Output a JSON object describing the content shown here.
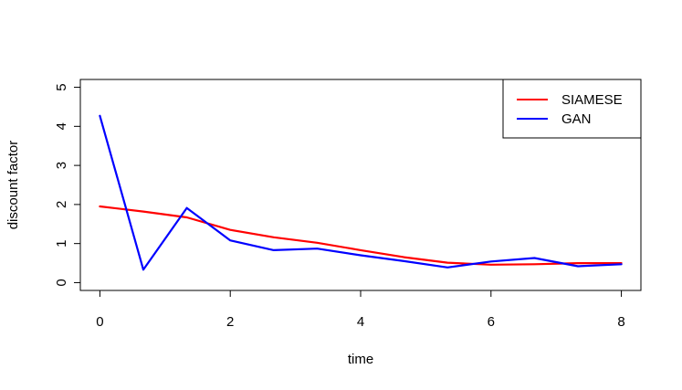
{
  "chart_data": {
    "type": "line",
    "title": "",
    "xlabel": "time",
    "ylabel": "discount factor",
    "xlim": [
      -0.3,
      8.3
    ],
    "ylim": [
      -0.2,
      5.2
    ],
    "x_ticks": [
      "0",
      "2",
      "4",
      "6",
      "8"
    ],
    "y_ticks": [
      "0",
      "1",
      "2",
      "3",
      "4",
      "5"
    ],
    "grid": false,
    "legend_position": "top-right",
    "series": [
      {
        "name": "SIAMESE",
        "color": "#FF0000",
        "x": [
          0,
          0.667,
          1.333,
          2,
          2.667,
          3.333,
          4,
          4.667,
          5.333,
          6,
          6.667,
          7.333,
          8
        ],
        "y": [
          1.95,
          1.82,
          1.67,
          1.35,
          1.16,
          1.02,
          0.83,
          0.65,
          0.51,
          0.46,
          0.47,
          0.5,
          0.5
        ]
      },
      {
        "name": "GAN",
        "color": "#0000FF",
        "x": [
          0,
          0.667,
          1.333,
          2,
          2.667,
          3.333,
          4,
          4.667,
          5.333,
          6,
          6.667,
          7.333,
          8
        ],
        "y": [
          4.27,
          0.33,
          1.91,
          1.08,
          0.83,
          0.87,
          0.7,
          0.55,
          0.39,
          0.54,
          0.63,
          0.42,
          0.47
        ]
      }
    ]
  }
}
